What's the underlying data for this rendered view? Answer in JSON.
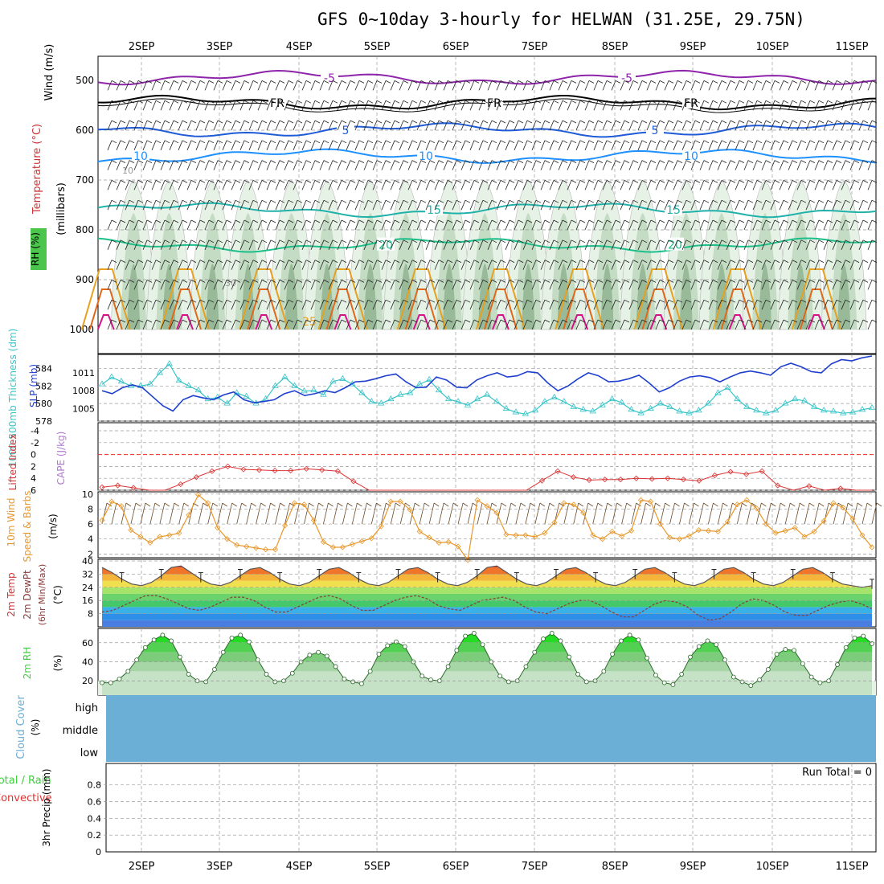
{
  "title": "GFS 0~10day 3-hourly for HELWAN (31.25E, 29.75N)",
  "dates": [
    "2SEP",
    "3SEP",
    "4SEP",
    "5SEP",
    "6SEP",
    "7SEP",
    "8SEP",
    "9SEP",
    "10SEP",
    "11SEP"
  ],
  "colors": {
    "temp_iso": "#8e24aa",
    "freezing": "#000000",
    "iso5": "#1e5bd6",
    "iso10": "#1e90ff",
    "iso15": "#20b2aa",
    "iso20": "#1cbf8a",
    "rh_fill": "#b5d6b5",
    "slp": "#1f3fcf",
    "thickness": "#37c4c8",
    "lifted_index": "#d33",
    "wind10": "#e8972a",
    "rh2m": "#3ad13a",
    "cloud": "#6baed6"
  },
  "panel_labels": {
    "upper_wind": "Wind (m/s)",
    "upper_temp": "Temperature (°C)",
    "upper_rh": "RH (%)",
    "upper_units": "(millibars)",
    "thickness": "1000-500mb Thickness (dm)",
    "slp": "SLP (mb)",
    "lifted": "Lifted Index",
    "cape": "CAPE (J/kg)",
    "wind10": "10m Wind",
    "wind10b": "Speed & Barbs",
    "wind10_units": "(m/s)",
    "temp2m": "2m Temp",
    "dewpt": "2m DewPt",
    "minmax": "(6hr Min/Max)",
    "temp_units": "(°C)",
    "rh2m": "2m RH",
    "rh2m_units": "(%)",
    "cloud": "Cloud Cover",
    "cloud_units": "(%)",
    "precip_total": "Total / Rain",
    "precip_conv": "Convective",
    "precip_axis": "3hr Precip (mm)",
    "run_total": "Run Total = 0"
  },
  "iso_labels": {
    "minus5": "-5",
    "fr": "FR",
    "five": "5",
    "ten": "10",
    "fifteen": "15",
    "twenty": "20",
    "twentyfive": "25",
    "rh10": "10",
    "rh30": "30"
  },
  "cloud_levels": [
    "high",
    "middle",
    "low"
  ],
  "chart_data": [
    {
      "type": "heatmap",
      "name": "upper-air cross section",
      "y_axis": {
        "label": "millibars",
        "ticks": [
          500,
          600,
          700,
          800,
          900,
          1000
        ]
      },
      "isotherm_levels_mb": {
        "-5": 495,
        "FR": 545,
        "5": 600,
        "10": 650,
        "15": 775,
        "20": 830
      }
    },
    {
      "type": "line",
      "name": "thickness and slp",
      "y_left_ticks": [
        578,
        580,
        582,
        584
      ],
      "y_right_ticks": [
        1005,
        1008,
        1011
      ],
      "series": [
        {
          "name": "1000-500mb Thickness (dm)",
          "values": [
            582.2,
            583,
            582.5,
            582,
            582,
            582.2,
            583.5,
            584.5,
            582.6,
            582,
            581.5,
            580.5,
            580.7,
            580,
            581.2,
            580.8,
            580,
            580.5,
            582,
            583,
            582,
            581.4,
            581.5,
            581,
            582.5,
            582.8,
            582.2,
            581.2,
            580.2,
            580,
            580.5,
            581,
            581.2,
            582.2,
            582.7,
            581.5,
            580.5,
            580.2,
            579.8,
            580.5,
            581,
            580.2,
            579.4,
            579,
            578.8,
            579.2,
            580.2,
            580.7,
            580.2,
            579.6,
            579.3,
            579.1,
            579.8,
            580.5,
            580.1,
            579.3,
            578.9,
            579.4,
            580,
            579.6,
            579.1,
            578.9,
            579.2,
            580,
            581.2,
            581.8,
            580.5,
            579.6,
            579.2,
            578.9,
            579.2,
            580,
            580.5,
            580.3,
            579.6,
            579.2,
            579.1,
            578.9,
            579,
            579.3,
            579.5
          ]
        },
        {
          "name": "SLP (mb)",
          "values": [
            1008,
            1007.5,
            1008.5,
            1009,
            1008.5,
            1007,
            1005.5,
            1004.6,
            1006.5,
            1007.2,
            1006.8,
            1006.5,
            1007.3,
            1007.8,
            1006.5,
            1006,
            1006.2,
            1006.5,
            1007.5,
            1008,
            1007.2,
            1007.5,
            1008,
            1007.7,
            1008.5,
            1009.5,
            1009.6,
            1010,
            1010.5,
            1010.8,
            1009.5,
            1008.5,
            1008.6,
            1010.3,
            1009.8,
            1008.6,
            1008.5,
            1009.8,
            1010.5,
            1011,
            1010.3,
            1010.5,
            1011.2,
            1011,
            1009.3,
            1008,
            1008.8,
            1010,
            1011,
            1010.5,
            1009.5,
            1009.6,
            1010,
            1010.6,
            1009.3,
            1007.8,
            1008.5,
            1009.6,
            1010.3,
            1010.5,
            1010.2,
            1009.5,
            1010.3,
            1011,
            1011.3,
            1011,
            1010.6,
            1012,
            1012.6,
            1012,
            1011.2,
            1011,
            1012.5,
            1013.2,
            1013,
            1013.5,
            1013.8
          ]
        }
      ]
    },
    {
      "type": "line",
      "name": "lifted index",
      "y_ticks": [
        -4,
        -2,
        0,
        2,
        4,
        6
      ],
      "reference_line": 0,
      "values": [
        5.5,
        5.2,
        5.6,
        6,
        6,
        5,
        3.8,
        2.8,
        2,
        2.5,
        2.6,
        2.7,
        2.7,
        2.4,
        2.6,
        2.8,
        4.5,
        6,
        6,
        6,
        6,
        6,
        6,
        6,
        6,
        6,
        6,
        6,
        4.4,
        2.8,
        3.8,
        4.3,
        4.2,
        4.2,
        4,
        4.1,
        4,
        4.2,
        4.4,
        3.5,
        2.9,
        3.3,
        2.8,
        5.2,
        6,
        5.3,
        6,
        5.7,
        6,
        6
      ]
    },
    {
      "type": "line",
      "name": "10m wind speed",
      "y_ticks": [
        2,
        4,
        6,
        8,
        10
      ],
      "values": [
        6.5,
        9,
        8.4,
        5.2,
        4.3,
        3.5,
        4.3,
        4.5,
        4.8,
        7.2,
        9.9,
        8.8,
        5.5,
        4,
        3.2,
        3,
        2.8,
        2.6,
        2.6,
        5.8,
        8.8,
        8.6,
        6.5,
        3.6,
        2.9,
        2.9,
        3.3,
        3.7,
        4.1,
        5.7,
        9,
        9,
        7.9,
        5,
        4.2,
        3.5,
        3.6,
        3,
        1.2,
        9.2,
        8.4,
        7.5,
        4.6,
        4.5,
        4.5,
        4.3,
        4.8,
        6.2,
        8.8,
        8.6,
        7.5,
        4.5,
        4,
        5,
        4.4,
        5.1,
        9.2,
        9,
        6,
        4.2,
        4,
        4.4,
        5.2,
        5.1,
        5,
        6.3,
        8.6,
        9.2,
        8.1,
        6,
        4.8,
        5.1,
        5.5,
        4.3,
        5,
        6.4,
        8.8,
        8.2,
        6.7,
        4.5,
        2.9
      ]
    },
    {
      "type": "area",
      "name": "2m temperature and dewpoint",
      "y_ticks": [
        8,
        16,
        24,
        32,
        40
      ],
      "series": [
        {
          "name": "2m Temp",
          "values": [
            36,
            33,
            29,
            26,
            25,
            27,
            31,
            36,
            37,
            33,
            29,
            26,
            25,
            27,
            31,
            35,
            36,
            33,
            29,
            26,
            25,
            27,
            31,
            35,
            36,
            33,
            29,
            26,
            25,
            27,
            31,
            35,
            36,
            33,
            29,
            26,
            25,
            27,
            31,
            36,
            37,
            33,
            29,
            26,
            25,
            27,
            31,
            35,
            36,
            33,
            29,
            26,
            25,
            27,
            31,
            35,
            36,
            33,
            29,
            26,
            25,
            27,
            31,
            35,
            36,
            33,
            29,
            26,
            25,
            27,
            31,
            35,
            36,
            33,
            29,
            26,
            25,
            24,
            25
          ]
        },
        {
          "name": "2m DewPt",
          "values": [
            9,
            10,
            13,
            16,
            19,
            19,
            17,
            14,
            11,
            10,
            12,
            15,
            18,
            18,
            16,
            12,
            9,
            9,
            12,
            15,
            18,
            19,
            17,
            13,
            10,
            10,
            13,
            16,
            18,
            19,
            17,
            13,
            11,
            10,
            13,
            16,
            17,
            18,
            16,
            12,
            9,
            8,
            11,
            14,
            16,
            16,
            13,
            9,
            6,
            6,
            10,
            14,
            16,
            15,
            12,
            7,
            4,
            5,
            9,
            14,
            17,
            16,
            13,
            9,
            7,
            7,
            10,
            13,
            15,
            16,
            14,
            11
          ]
        }
      ]
    },
    {
      "type": "area",
      "name": "2m relative humidity",
      "y_ticks": [
        20,
        40,
        60
      ],
      "values": [
        18,
        18,
        22,
        30,
        42,
        55,
        63,
        68,
        62,
        45,
        27,
        20,
        19,
        32,
        50,
        65,
        68,
        61,
        42,
        27,
        19,
        20,
        28,
        40,
        47,
        50,
        46,
        35,
        22,
        19,
        17,
        30,
        48,
        57,
        61,
        56,
        40,
        25,
        21,
        20,
        35,
        52,
        67,
        70,
        58,
        40,
        25,
        19,
        20,
        35,
        50,
        64,
        70,
        62,
        45,
        27,
        19,
        20,
        30,
        48,
        62,
        68,
        63,
        44,
        26,
        18,
        16,
        27,
        45,
        56,
        62,
        58,
        42,
        24,
        19,
        15,
        21,
        32,
        48,
        53,
        52,
        38,
        24,
        18,
        20,
        37,
        55,
        65,
        67,
        59
      ]
    },
    {
      "type": "table",
      "name": "cloud cover",
      "rows": [
        "high",
        "middle",
        "low"
      ],
      "values": "uniform"
    },
    {
      "type": "bar",
      "name": "3hr precipitation",
      "y_ticks": [
        0,
        0.2,
        0.4,
        0.6,
        0.8
      ],
      "ylim": [
        0,
        1
      ],
      "values": [
        0
      ]
    }
  ]
}
